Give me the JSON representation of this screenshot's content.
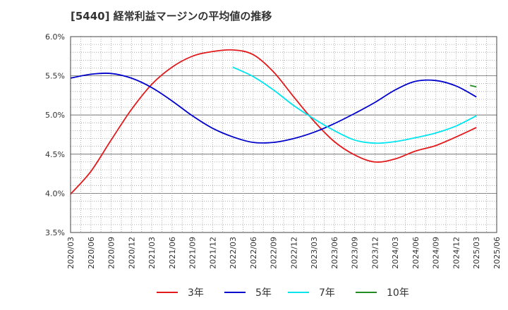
{
  "chart_data": {
    "type": "line",
    "title": "[5440]  経常利益マージンの平均値の推移",
    "xlabel": "",
    "ylabel": "",
    "x": [
      "2020/03",
      "2020/06",
      "2020/09",
      "2020/12",
      "2021/03",
      "2021/06",
      "2021/09",
      "2021/12",
      "2022/03",
      "2022/06",
      "2022/09",
      "2022/12",
      "2023/03",
      "2023/06",
      "2023/09",
      "2023/12",
      "2024/03",
      "2024/06",
      "2024/09",
      "2024/12",
      "2025/03",
      "2025/06"
    ],
    "ylim": [
      3.5,
      6.0
    ],
    "y_ticks": [
      "3.5%",
      "4.0%",
      "4.5%",
      "5.0%",
      "5.5%",
      "6.0%"
    ],
    "grid": true,
    "legend_position": "bottom",
    "series": [
      {
        "name": "3年",
        "color": "#e31a1c",
        "values": [
          3.99,
          4.28,
          4.68,
          5.07,
          5.39,
          5.61,
          5.75,
          5.81,
          5.83,
          5.77,
          5.55,
          5.23,
          4.92,
          4.66,
          4.49,
          4.4,
          4.44,
          4.54,
          4.61,
          4.72,
          4.84,
          null
        ]
      },
      {
        "name": "5年",
        "color": "#0000cc",
        "values": [
          5.47,
          5.52,
          5.53,
          5.47,
          5.35,
          5.18,
          4.99,
          4.83,
          4.72,
          4.65,
          4.65,
          4.7,
          4.78,
          4.89,
          5.02,
          5.16,
          5.32,
          5.43,
          5.44,
          5.37,
          5.23,
          null
        ]
      },
      {
        "name": "7年",
        "color": "#00e5ee",
        "values": [
          null,
          null,
          null,
          null,
          null,
          null,
          null,
          null,
          5.61,
          5.49,
          5.32,
          5.12,
          4.95,
          4.8,
          4.68,
          4.64,
          4.66,
          4.71,
          4.77,
          4.86,
          4.99,
          null
        ]
      },
      {
        "name": "10年",
        "color": "#228b22",
        "values": [
          null,
          null,
          null,
          null,
          null,
          null,
          null,
          null,
          null,
          null,
          null,
          null,
          null,
          null,
          null,
          null,
          null,
          null,
          null,
          null,
          5.36,
          null
        ]
      }
    ]
  }
}
